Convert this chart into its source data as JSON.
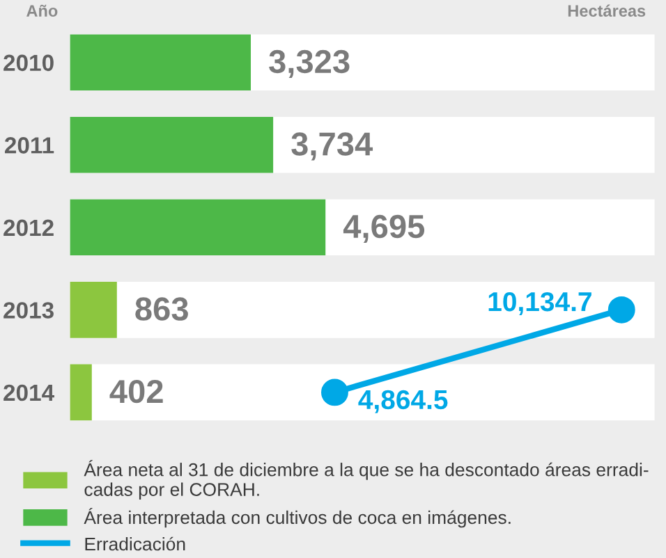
{
  "chart_data": {
    "type": "bar",
    "orientation": "horizontal",
    "xlabel": "Hectáreas",
    "ylabel": "Año",
    "tick_labels": "y",
    "legend": "bottom",
    "grid": "y",
    "categories": [
      "2010",
      "2011",
      "2012",
      "2013",
      "2014"
    ],
    "series": [
      {
        "name": "Área neta al 31 de diciembre a la que se ha descontado áreas erradi-\ncadas por el CORAH.",
        "color": "#8cc63f",
        "values": [
          null,
          null,
          null,
          863,
          402
        ],
        "value_labels": [
          null,
          null,
          null,
          "863",
          "402"
        ]
      },
      {
        "name": "Área interpretada con cultivos de coca en imágenes.",
        "color": "#4db848",
        "values": [
          3323,
          3734,
          4695,
          null,
          null
        ],
        "value_labels": [
          "3,323",
          "3,734",
          "4,695",
          null,
          null
        ]
      },
      {
        "name": "Erradicación",
        "type": "line",
        "color": "#00a8e6",
        "marker": "circle",
        "values": [
          null,
          null,
          null,
          10134.7,
          4864.5
        ],
        "value_labels": [
          null,
          null,
          null,
          "10,134.7",
          "4,864.5"
        ]
      }
    ]
  }
}
